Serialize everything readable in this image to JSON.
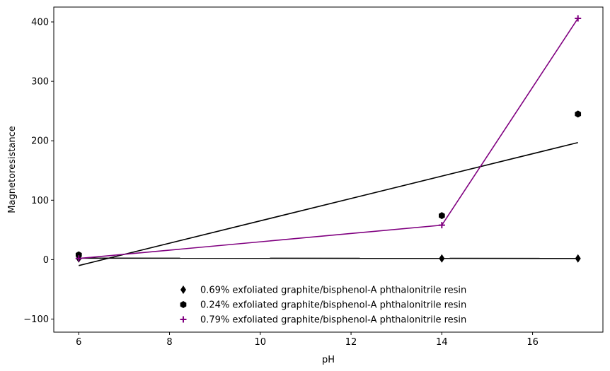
{
  "chart_data": {
    "type": "scatter",
    "xlabel": "pH",
    "ylabel": "Magnetoresistance",
    "xlim": [
      5.45,
      17.55
    ],
    "ylim": [
      -122,
      425
    ],
    "xticks": [
      6,
      8,
      10,
      12,
      14,
      16
    ],
    "yticks": [
      -100,
      0,
      100,
      200,
      300,
      400
    ],
    "tick_labels_x": [
      "6",
      "8",
      "10",
      "12",
      "14",
      "16"
    ],
    "tick_labels_y": [
      "−100",
      "0",
      "100",
      "200",
      "300",
      "400"
    ],
    "grid": false,
    "legend_position": "bottom-center",
    "series": [
      {
        "name": "0.69% exfoliated graphite/bisphenol-A phthalonitrile resin",
        "marker": "diamond",
        "color": "#000000",
        "points": [
          {
            "x": 6,
            "y": 2
          },
          {
            "x": 14,
            "y": 2
          },
          {
            "x": 17,
            "y": 2
          }
        ],
        "fit": {
          "kind": "linear",
          "points": [
            {
              "x": 6,
              "y": 2.5
            },
            {
              "x": 17,
              "y": 2
            }
          ]
        }
      },
      {
        "name": "0.24% exfoliated graphite/bisphenol-A phthalonitrile resin",
        "marker": "hexagon",
        "color": "#000000",
        "points": [
          {
            "x": 6,
            "y": 8
          },
          {
            "x": 14,
            "y": 74
          },
          {
            "x": 17,
            "y": 245
          }
        ],
        "fit": {
          "kind": "linear",
          "points": [
            {
              "x": 6,
              "y": -10
            },
            {
              "x": 17,
              "y": 197
            }
          ]
        }
      },
      {
        "name": "0.79% exfoliated graphite/bisphenol-A phthalonitrile resin",
        "marker": "plus",
        "color": "#800080",
        "points": [
          {
            "x": 6,
            "y": 2
          },
          {
            "x": 14,
            "y": 58
          },
          {
            "x": 17,
            "y": 406
          }
        ],
        "fit": {
          "kind": "polyline",
          "points": [
            {
              "x": 6,
              "y": 2
            },
            {
              "x": 14,
              "y": 58
            },
            {
              "x": 17,
              "y": 406
            }
          ]
        }
      }
    ]
  }
}
